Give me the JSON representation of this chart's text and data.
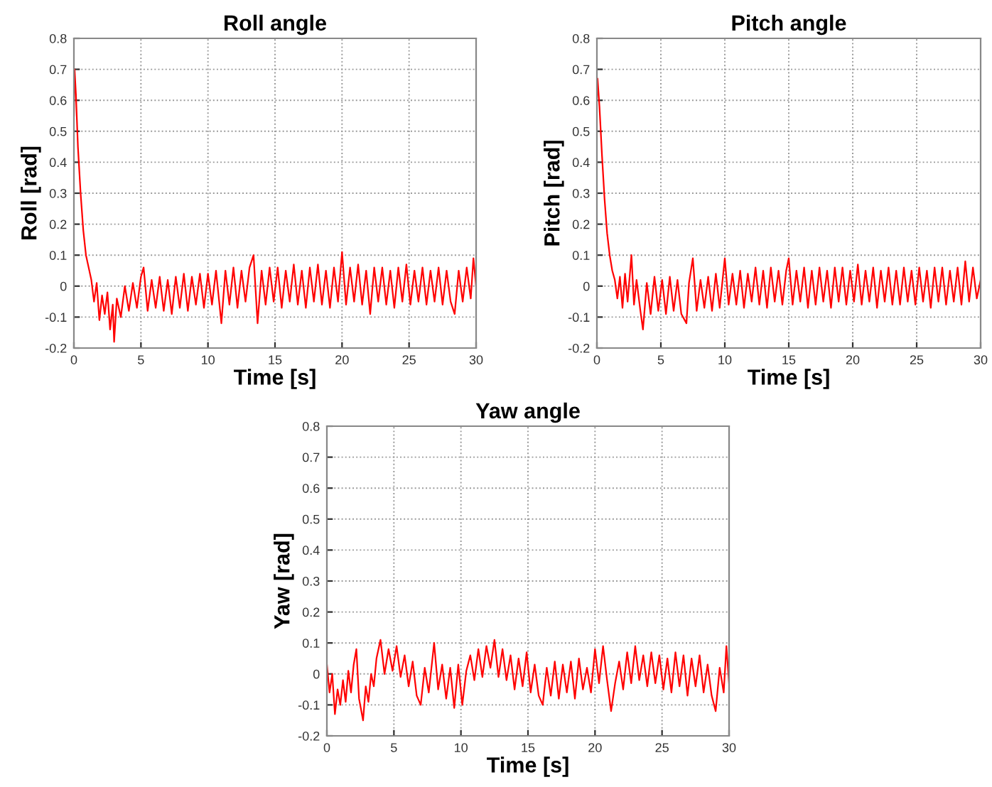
{
  "chart_data": [
    {
      "type": "line",
      "title": "Roll angle",
      "xlabel": "Time [s]",
      "ylabel": "Roll [rad]",
      "xlim": [
        0,
        30
      ],
      "ylim": [
        -0.2,
        0.8
      ],
      "xticks": [
        0,
        5,
        10,
        15,
        20,
        25,
        30
      ],
      "yticks": [
        -0.2,
        -0.1,
        0,
        0.1,
        0.2,
        0.3,
        0.4,
        0.5,
        0.6,
        0.7,
        0.8
      ],
      "grid": true,
      "line_style": "solid",
      "marker": "none",
      "series": [
        {
          "color": "#ff0000",
          "x": [
            0,
            0.05,
            0.15,
            0.3,
            0.5,
            0.7,
            0.9,
            1.1,
            1.3,
            1.5,
            1.7,
            1.9,
            2.1,
            2.3,
            2.5,
            2.7,
            2.9,
            3.0,
            3.2,
            3.5,
            3.8,
            4.1,
            4.4,
            4.7,
            5.0,
            5.2,
            5.5,
            5.8,
            6.1,
            6.4,
            6.7,
            7.0,
            7.3,
            7.6,
            7.9,
            8.2,
            8.5,
            8.8,
            9.1,
            9.4,
            9.7,
            10.0,
            10.3,
            10.6,
            11.0,
            11.3,
            11.6,
            11.9,
            12.2,
            12.5,
            12.8,
            13.1,
            13.4,
            13.7,
            14.0,
            14.3,
            14.6,
            14.9,
            15.2,
            15.5,
            15.8,
            16.1,
            16.4,
            16.7,
            17.0,
            17.3,
            17.6,
            17.9,
            18.2,
            18.5,
            18.8,
            19.1,
            19.4,
            19.7,
            20.0,
            20.3,
            20.6,
            20.9,
            21.2,
            21.5,
            21.8,
            22.1,
            22.4,
            22.7,
            23.0,
            23.3,
            23.6,
            23.9,
            24.2,
            24.5,
            24.8,
            25.1,
            25.4,
            25.7,
            26.0,
            26.3,
            26.6,
            26.9,
            27.2,
            27.5,
            27.8,
            28.1,
            28.4,
            28.7,
            29.0,
            29.3,
            29.6,
            29.8,
            30.0
          ],
          "values": [
            0.55,
            0.7,
            0.62,
            0.45,
            0.3,
            0.18,
            0.1,
            0.06,
            0.02,
            -0.05,
            0.01,
            -0.11,
            -0.03,
            -0.09,
            -0.02,
            -0.14,
            -0.06,
            -0.18,
            -0.04,
            -0.1,
            0.0,
            -0.08,
            0.01,
            -0.07,
            0.03,
            0.06,
            -0.08,
            0.02,
            -0.07,
            0.03,
            -0.08,
            0.02,
            -0.09,
            0.03,
            -0.07,
            0.04,
            -0.08,
            0.03,
            -0.06,
            0.04,
            -0.07,
            0.04,
            -0.06,
            0.05,
            -0.12,
            0.05,
            -0.06,
            0.06,
            -0.07,
            0.05,
            -0.05,
            0.06,
            0.1,
            -0.12,
            0.05,
            -0.06,
            0.06,
            -0.05,
            0.06,
            -0.07,
            0.05,
            -0.05,
            0.07,
            -0.06,
            0.05,
            -0.07,
            0.06,
            -0.05,
            0.07,
            -0.06,
            0.05,
            -0.07,
            0.06,
            -0.05,
            0.11,
            -0.06,
            0.06,
            -0.05,
            0.07,
            -0.06,
            0.05,
            -0.09,
            0.06,
            -0.05,
            0.06,
            -0.06,
            0.05,
            -0.07,
            0.06,
            -0.05,
            0.07,
            -0.06,
            0.05,
            -0.05,
            0.06,
            -0.06,
            0.05,
            -0.05,
            0.06,
            -0.06,
            0.05,
            -0.05,
            -0.09,
            0.05,
            -0.05,
            0.06,
            -0.04,
            0.09,
            0.0
          ]
        }
      ]
    },
    {
      "type": "line",
      "title": "Pitch angle",
      "xlabel": "Time [s]",
      "ylabel": "Pitch [rad]",
      "xlim": [
        0,
        30
      ],
      "ylim": [
        -0.2,
        0.8
      ],
      "xticks": [
        0,
        5,
        10,
        15,
        20,
        25,
        30
      ],
      "yticks": [
        -0.2,
        -0.1,
        0,
        0.1,
        0.2,
        0.3,
        0.4,
        0.5,
        0.6,
        0.7,
        0.8
      ],
      "grid": true,
      "line_style": "solid",
      "marker": "none",
      "series": [
        {
          "color": "#ff0000",
          "x": [
            0,
            0.05,
            0.2,
            0.4,
            0.6,
            0.8,
            1.0,
            1.2,
            1.4,
            1.6,
            1.8,
            2.0,
            2.2,
            2.4,
            2.7,
            2.9,
            3.1,
            3.4,
            3.6,
            3.9,
            4.2,
            4.5,
            4.8,
            5.1,
            5.4,
            5.7,
            6.0,
            6.3,
            6.6,
            7.0,
            7.2,
            7.5,
            7.8,
            8.1,
            8.4,
            8.7,
            9.0,
            9.3,
            9.6,
            10.0,
            10.3,
            10.6,
            10.9,
            11.2,
            11.5,
            11.8,
            12.1,
            12.4,
            12.7,
            13.0,
            13.3,
            13.6,
            13.9,
            14.2,
            14.5,
            14.8,
            15.0,
            15.3,
            15.6,
            15.9,
            16.2,
            16.5,
            16.8,
            17.1,
            17.4,
            17.7,
            18.0,
            18.3,
            18.6,
            18.9,
            19.2,
            19.5,
            19.8,
            20.1,
            20.4,
            20.7,
            21.0,
            21.3,
            21.6,
            21.9,
            22.2,
            22.5,
            22.8,
            23.1,
            23.4,
            23.7,
            24.0,
            24.3,
            24.6,
            24.9,
            25.2,
            25.5,
            25.8,
            26.1,
            26.4,
            26.7,
            27.0,
            27.3,
            27.6,
            27.9,
            28.2,
            28.5,
            28.8,
            29.1,
            29.4,
            29.7,
            30.0
          ],
          "values": [
            0.6,
            0.67,
            0.58,
            0.42,
            0.28,
            0.17,
            0.1,
            0.05,
            0.02,
            -0.04,
            0.03,
            -0.07,
            0.04,
            -0.05,
            0.1,
            -0.06,
            0.02,
            -0.08,
            -0.14,
            0.01,
            -0.09,
            0.03,
            -0.08,
            0.02,
            -0.09,
            0.03,
            -0.08,
            0.02,
            -0.09,
            -0.12,
            0.01,
            0.09,
            -0.08,
            0.02,
            -0.07,
            0.03,
            -0.08,
            0.04,
            -0.07,
            0.09,
            -0.06,
            0.04,
            -0.06,
            0.05,
            -0.07,
            0.04,
            -0.05,
            0.06,
            -0.06,
            0.05,
            -0.07,
            0.06,
            -0.05,
            0.05,
            -0.06,
            0.05,
            0.09,
            -0.06,
            0.05,
            -0.05,
            0.06,
            -0.07,
            0.05,
            -0.06,
            0.06,
            -0.05,
            0.05,
            -0.07,
            0.06,
            -0.05,
            0.06,
            -0.06,
            0.05,
            -0.05,
            0.07,
            -0.06,
            0.05,
            -0.05,
            0.06,
            -0.07,
            0.05,
            -0.05,
            0.06,
            -0.06,
            0.05,
            -0.06,
            0.06,
            -0.05,
            0.05,
            -0.06,
            0.06,
            -0.05,
            0.05,
            -0.07,
            0.06,
            -0.05,
            0.06,
            -0.06,
            0.05,
            -0.05,
            0.06,
            -0.06,
            0.08,
            -0.05,
            0.06,
            -0.04,
            0.02
          ]
        }
      ]
    },
    {
      "type": "line",
      "title": "Yaw angle",
      "xlabel": "Time [s]",
      "ylabel": "Yaw [rad]",
      "xlim": [
        0,
        30
      ],
      "ylim": [
        -0.2,
        0.8
      ],
      "xticks": [
        0,
        5,
        10,
        15,
        20,
        25,
        30
      ],
      "yticks": [
        -0.2,
        -0.1,
        0,
        0.1,
        0.2,
        0.3,
        0.4,
        0.5,
        0.6,
        0.7,
        0.8
      ],
      "grid": true,
      "line_style": "solid",
      "marker": "none",
      "series": [
        {
          "color": "#ff0000",
          "x": [
            0,
            0.2,
            0.4,
            0.6,
            0.8,
            1.0,
            1.2,
            1.4,
            1.6,
            1.8,
            2.0,
            2.2,
            2.4,
            2.7,
            2.9,
            3.1,
            3.3,
            3.5,
            3.7,
            4.0,
            4.3,
            4.6,
            4.9,
            5.2,
            5.5,
            5.8,
            6.1,
            6.4,
            6.7,
            7.0,
            7.3,
            7.6,
            8.0,
            8.3,
            8.6,
            8.9,
            9.2,
            9.5,
            9.8,
            10.1,
            10.4,
            10.7,
            11.0,
            11.3,
            11.6,
            11.9,
            12.2,
            12.5,
            12.8,
            13.1,
            13.4,
            13.7,
            14.0,
            14.3,
            14.6,
            14.9,
            15.2,
            15.5,
            15.8,
            16.1,
            16.4,
            16.7,
            17.0,
            17.3,
            17.6,
            17.9,
            18.2,
            18.5,
            18.8,
            19.1,
            19.4,
            19.7,
            20.0,
            20.3,
            20.6,
            20.9,
            21.2,
            21.5,
            21.8,
            22.1,
            22.4,
            22.7,
            23.0,
            23.3,
            23.6,
            23.9,
            24.2,
            24.5,
            24.8,
            25.1,
            25.4,
            25.7,
            26.0,
            26.3,
            26.6,
            26.9,
            27.2,
            27.5,
            27.8,
            28.1,
            28.4,
            28.7,
            29.0,
            29.3,
            29.6,
            29.8,
            30.0
          ],
          "values": [
            0.03,
            -0.06,
            0.0,
            -0.13,
            -0.05,
            -0.1,
            -0.02,
            -0.09,
            0.01,
            -0.06,
            0.03,
            0.08,
            -0.08,
            -0.15,
            -0.04,
            -0.09,
            0.0,
            -0.04,
            0.05,
            0.11,
            0.0,
            0.08,
            0.01,
            0.09,
            -0.01,
            0.06,
            -0.04,
            0.04,
            -0.07,
            -0.1,
            0.02,
            -0.06,
            0.1,
            -0.05,
            0.03,
            -0.08,
            0.02,
            -0.11,
            0.03,
            -0.1,
            0.01,
            0.06,
            -0.02,
            0.08,
            -0.01,
            0.09,
            0.02,
            0.11,
            -0.01,
            0.08,
            -0.02,
            0.06,
            -0.05,
            0.05,
            -0.04,
            0.07,
            -0.06,
            0.03,
            -0.07,
            -0.1,
            0.02,
            -0.07,
            0.04,
            -0.08,
            0.03,
            -0.06,
            0.04,
            -0.08,
            0.05,
            -0.05,
            0.02,
            -0.06,
            0.08,
            -0.03,
            0.09,
            -0.02,
            -0.12,
            -0.03,
            0.04,
            -0.05,
            0.07,
            -0.03,
            0.09,
            -0.02,
            0.06,
            -0.04,
            0.07,
            -0.03,
            0.06,
            -0.05,
            0.05,
            -0.06,
            0.07,
            -0.04,
            0.06,
            -0.07,
            0.05,
            -0.04,
            0.06,
            -0.06,
            0.03,
            -0.07,
            -0.12,
            0.02,
            -0.06,
            0.09,
            -0.03
          ]
        }
      ]
    }
  ]
}
